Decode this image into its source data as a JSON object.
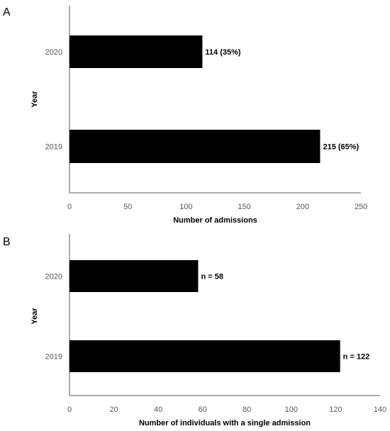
{
  "chart_data": [
    {
      "type": "bar",
      "orientation": "horizontal",
      "panel": "A",
      "categories": [
        "2019",
        "2020"
      ],
      "values": [
        215,
        114
      ],
      "data_labels": [
        "215 (65%)",
        "114 (35%)"
      ],
      "xlabel": "Number of admissions",
      "ylabel": "Year",
      "xlim": [
        0,
        250
      ],
      "xticks": [
        0,
        50,
        100,
        150,
        200,
        250
      ],
      "bar_color": "#000000",
      "grid": false
    },
    {
      "type": "bar",
      "orientation": "horizontal",
      "panel": "B",
      "categories": [
        "2019",
        "2020"
      ],
      "values": [
        122,
        58
      ],
      "data_labels": [
        "n = 122",
        "n = 58"
      ],
      "xlabel": "Number of individuals with a single admission",
      "ylabel": "Year",
      "xlim": [
        0,
        140
      ],
      "xticks": [
        0,
        20,
        40,
        60,
        80,
        100,
        120,
        140
      ],
      "bar_color": "#000000",
      "grid": false
    }
  ]
}
